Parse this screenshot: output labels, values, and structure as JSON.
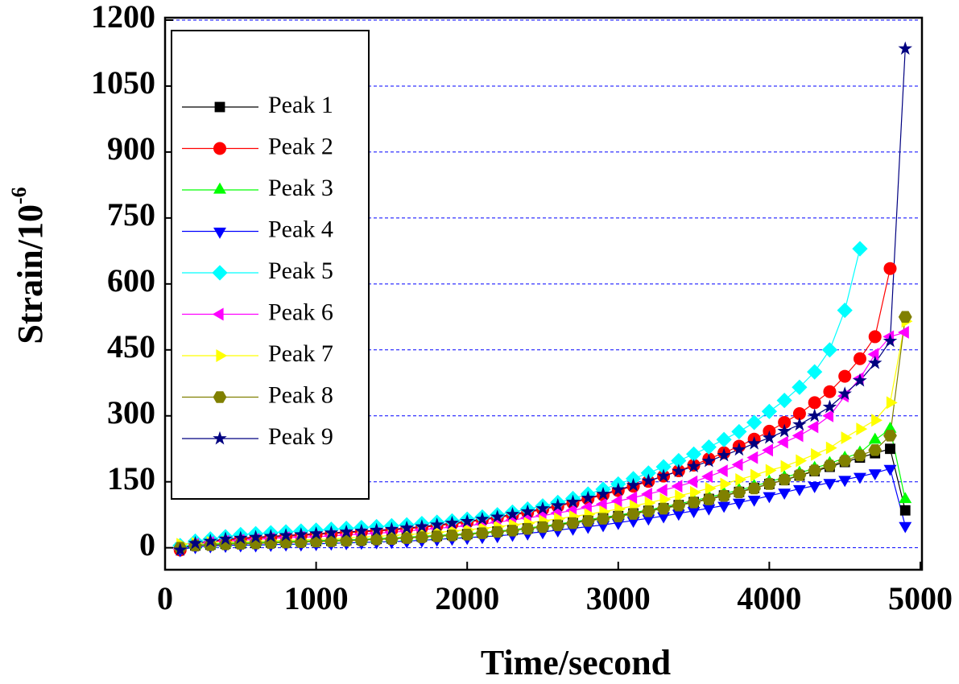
{
  "chart_data": {
    "type": "line",
    "xlabel": "Time/second",
    "ylabel": "Strain/10",
    "ylabel_superscript": "-6",
    "x": [
      100,
      200,
      300,
      400,
      500,
      600,
      700,
      800,
      900,
      1000,
      1100,
      1200,
      1300,
      1400,
      1500,
      1600,
      1700,
      1800,
      1900,
      2000,
      2100,
      2200,
      2300,
      2400,
      2500,
      2600,
      2700,
      2800,
      2900,
      3000,
      3100,
      3200,
      3300,
      3400,
      3500,
      3600,
      3700,
      3800,
      3900,
      4000,
      4100,
      4200,
      4300,
      4400,
      4500,
      4600,
      4700,
      4800,
      4900
    ],
    "series": [
      {
        "name": "Peak 1",
        "color": "#000000",
        "marker": "square",
        "values": [
          0,
          5,
          7,
          9,
          10,
          11,
          12,
          13,
          14,
          15,
          16,
          17,
          18,
          20,
          21,
          23,
          25,
          27,
          29,
          31,
          34,
          37,
          40,
          44,
          48,
          52,
          57,
          62,
          67,
          72,
          78,
          84,
          90,
          97,
          104,
          111,
          119,
          127,
          136,
          145,
          154,
          164,
          174,
          184,
          195,
          205,
          215,
          225,
          85
        ]
      },
      {
        "name": "Peak 2",
        "color": "#ff0000",
        "marker": "circle",
        "values": [
          -5,
          10,
          14,
          17,
          20,
          22,
          24,
          26,
          28,
          30,
          32,
          34,
          36,
          38,
          40,
          43,
          46,
          50,
          54,
          58,
          63,
          68,
          74,
          80,
          87,
          94,
          102,
          111,
          120,
          130,
          140,
          151,
          163,
          175,
          188,
          202,
          216,
          231,
          247,
          265,
          285,
          305,
          330,
          355,
          390,
          430,
          480,
          635,
          null
        ]
      },
      {
        "name": "Peak 3",
        "color": "#00ff00",
        "marker": "triangle-up",
        "values": [
          3,
          6,
          8,
          10,
          11,
          12,
          13,
          14,
          15,
          16,
          17,
          18,
          19,
          21,
          22,
          24,
          26,
          28,
          30,
          32,
          35,
          38,
          41,
          45,
          49,
          54,
          59,
          64,
          69,
          74,
          80,
          86,
          93,
          100,
          107,
          115,
          123,
          131,
          140,
          150,
          160,
          170,
          181,
          192,
          204,
          216,
          245,
          270,
          110
        ]
      },
      {
        "name": "Peak 4",
        "color": "#0000ff",
        "marker": "triangle-down",
        "values": [
          -5,
          2,
          4,
          5,
          6,
          6,
          7,
          8,
          8,
          9,
          10,
          11,
          12,
          13,
          14,
          15,
          17,
          19,
          21,
          23,
          25,
          27,
          30,
          33,
          36,
          40,
          44,
          48,
          52,
          57,
          62,
          67,
          72,
          78,
          84,
          90,
          96,
          103,
          110,
          118,
          126,
          134,
          141,
          148,
          155,
          162,
          170,
          180,
          50
        ]
      },
      {
        "name": "Peak 5",
        "color": "#00ffff",
        "marker": "diamond",
        "values": [
          5,
          15,
          20,
          25,
          30,
          32,
          34,
          36,
          38,
          40,
          42,
          44,
          46,
          48,
          50,
          52,
          55,
          58,
          61,
          65,
          70,
          75,
          81,
          88,
          95,
          103,
          112,
          122,
          133,
          145,
          157,
          170,
          184,
          198,
          213,
          229,
          246,
          264,
          285,
          310,
          335,
          365,
          400,
          450,
          540,
          680,
          null,
          null,
          null
        ]
      },
      {
        "name": "Peak 6",
        "color": "#ff00ff",
        "marker": "triangle-left",
        "values": [
          -3,
          8,
          12,
          15,
          17,
          19,
          21,
          23,
          24,
          25,
          27,
          29,
          31,
          33,
          35,
          38,
          41,
          44,
          47,
          50,
          54,
          58,
          63,
          68,
          73,
          79,
          85,
          92,
          99,
          106,
          114,
          122,
          131,
          140,
          150,
          162,
          175,
          189,
          205,
          222,
          240,
          255,
          275,
          300,
          345,
          385,
          440,
          480,
          490
        ]
      },
      {
        "name": "Peak 7",
        "color": "#ffff00",
        "marker": "triangle-right",
        "values": [
          8,
          10,
          12,
          13,
          14,
          15,
          16,
          17,
          18,
          19,
          20,
          22,
          24,
          26,
          28,
          30,
          32,
          35,
          38,
          41,
          44,
          48,
          52,
          56,
          61,
          66,
          71,
          76,
          82,
          88,
          95,
          102,
          110,
          118,
          126,
          135,
          145,
          155,
          165,
          176,
          185,
          198,
          212,
          227,
          250,
          270,
          290,
          330,
          515
        ]
      },
      {
        "name": "Peak 8",
        "color": "#808000",
        "marker": "hexagon",
        "values": [
          0,
          5,
          6,
          8,
          9,
          10,
          11,
          12,
          13,
          14,
          15,
          16,
          17,
          19,
          20,
          22,
          24,
          26,
          28,
          30,
          33,
          36,
          39,
          43,
          47,
          51,
          56,
          61,
          66,
          71,
          77,
          83,
          89,
          96,
          103,
          110,
          118,
          126,
          135,
          145,
          155,
          165,
          176,
          187,
          198,
          210,
          222,
          255,
          525
        ]
      },
      {
        "name": "Peak 9",
        "color": "#000080",
        "marker": "star",
        "values": [
          -5,
          10,
          15,
          20,
          22,
          24,
          26,
          28,
          30,
          32,
          34,
          36,
          38,
          40,
          42,
          45,
          48,
          52,
          56,
          60,
          65,
          70,
          76,
          82,
          89,
          96,
          104,
          113,
          122,
          132,
          142,
          152,
          163,
          174,
          185,
          197,
          210,
          223,
          237,
          250,
          265,
          280,
          300,
          320,
          350,
          380,
          420,
          470,
          1135
        ]
      }
    ],
    "xlim": [
      0,
      5000
    ],
    "xticks": [
      0,
      1000,
      2000,
      3000,
      4000,
      5000
    ],
    "ylim": [
      -50,
      1200
    ],
    "yticks": [
      0,
      150,
      300,
      450,
      600,
      750,
      900,
      1050,
      1200
    ],
    "grid": true,
    "grid_color": "#0000ff",
    "legend": "upper left"
  }
}
